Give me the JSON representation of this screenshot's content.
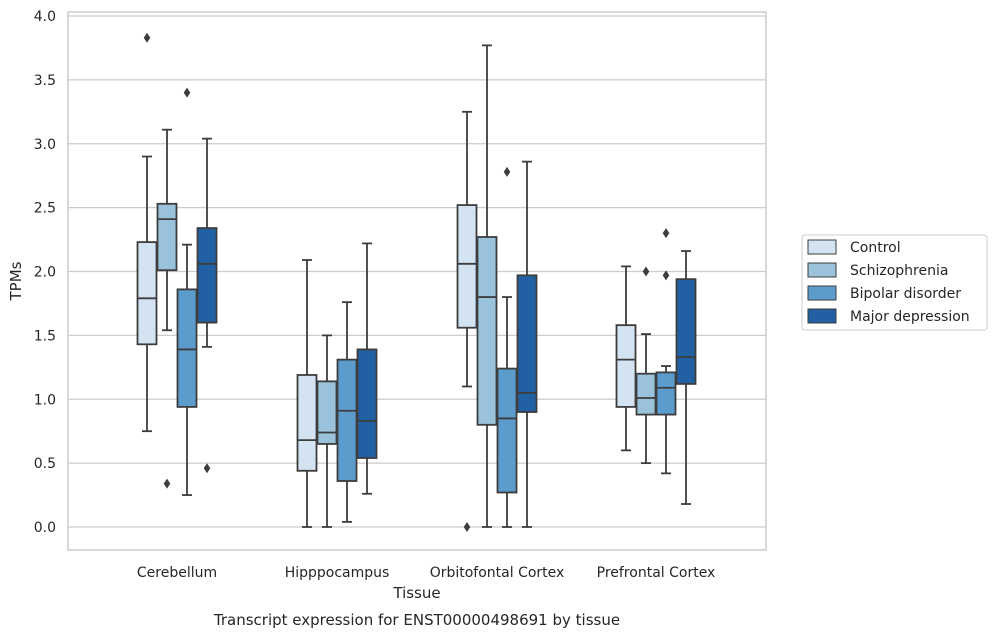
{
  "caption": "Transcript expression for ENST00000498691 by tissue",
  "chart_data": {
    "type": "box",
    "title": "",
    "xlabel": "Tissue",
    "ylabel": "TPMs",
    "ylim": [
      -0.18,
      4.03
    ],
    "yticks": [
      0.0,
      0.5,
      1.0,
      1.5,
      2.0,
      2.5,
      3.0,
      3.5,
      4.0
    ],
    "ytick_labels": [
      "0.0",
      "0.5",
      "1.0",
      "1.5",
      "2.0",
      "2.5",
      "3.0",
      "3.5",
      "4.0"
    ],
    "grid": true,
    "legend_position": "right",
    "categories": [
      "Cerebellum",
      "Hipppocampus",
      "Orbitofontal Cortex",
      "Prefrontal Cortex"
    ],
    "series": [
      {
        "name": "Control",
        "color": "#d3e3f2",
        "boxes": [
          {
            "whislo": 0.75,
            "q1": 1.43,
            "med": 1.79,
            "q3": 2.23,
            "whishi": 2.9,
            "fliers": [
              3.83
            ]
          },
          {
            "whislo": 0.0,
            "q1": 0.44,
            "med": 0.68,
            "q3": 1.19,
            "whishi": 2.09,
            "fliers": []
          },
          {
            "whislo": 1.1,
            "q1": 1.56,
            "med": 2.06,
            "q3": 2.52,
            "whishi": 3.25,
            "fliers": [
              0.0
            ]
          },
          {
            "whislo": 0.6,
            "q1": 0.94,
            "med": 1.31,
            "q3": 1.58,
            "whishi": 2.04,
            "fliers": []
          }
        ]
      },
      {
        "name": "Schizophrenia",
        "color": "#9ac2db",
        "boxes": [
          {
            "whislo": 1.54,
            "q1": 2.01,
            "med": 2.41,
            "q3": 2.53,
            "whishi": 3.11,
            "fliers": [
              0.34
            ]
          },
          {
            "whislo": 0.0,
            "q1": 0.65,
            "med": 0.74,
            "q3": 1.14,
            "whishi": 1.5,
            "fliers": []
          },
          {
            "whislo": 0.0,
            "q1": 0.8,
            "med": 1.8,
            "q3": 2.27,
            "whishi": 3.77,
            "fliers": []
          },
          {
            "whislo": 0.5,
            "q1": 0.88,
            "med": 1.01,
            "q3": 1.2,
            "whishi": 1.51,
            "fliers": [
              2.0
            ]
          }
        ]
      },
      {
        "name": "Bipolar disorder",
        "color": "#5b9ccd",
        "boxes": [
          {
            "whislo": 0.25,
            "q1": 0.94,
            "med": 1.39,
            "q3": 1.86,
            "whishi": 2.21,
            "fliers": [
              3.4
            ]
          },
          {
            "whislo": 0.04,
            "q1": 0.36,
            "med": 0.91,
            "q3": 1.31,
            "whishi": 1.76,
            "fliers": []
          },
          {
            "whislo": 0.0,
            "q1": 0.27,
            "med": 0.85,
            "q3": 1.24,
            "whishi": 1.8,
            "fliers": [
              2.78
            ]
          },
          {
            "whislo": 0.42,
            "q1": 0.88,
            "med": 1.09,
            "q3": 1.21,
            "whishi": 1.26,
            "fliers": [
              2.3,
              1.97
            ]
          }
        ]
      },
      {
        "name": "Major depression",
        "color": "#2260a4",
        "boxes": [
          {
            "whislo": 1.41,
            "q1": 1.6,
            "med": 2.06,
            "q3": 2.34,
            "whishi": 3.04,
            "fliers": [
              0.46
            ]
          },
          {
            "whislo": 0.26,
            "q1": 0.54,
            "med": 0.83,
            "q3": 1.39,
            "whishi": 2.22,
            "fliers": []
          },
          {
            "whislo": 0.0,
            "q1": 0.9,
            "med": 1.05,
            "q3": 1.97,
            "whishi": 2.86,
            "fliers": []
          },
          {
            "whislo": 0.18,
            "q1": 1.12,
            "med": 1.33,
            "q3": 1.94,
            "whishi": 2.16,
            "fliers": []
          }
        ]
      }
    ]
  }
}
